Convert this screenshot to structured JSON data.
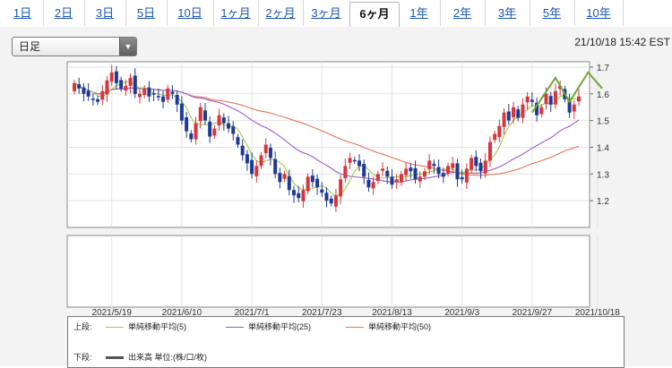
{
  "tabs": [
    {
      "label": "1日",
      "active": false
    },
    {
      "label": "2日",
      "active": false
    },
    {
      "label": "3日",
      "active": false
    },
    {
      "label": "5日",
      "active": false
    },
    {
      "label": "10日",
      "active": false
    },
    {
      "label": "1ヶ月",
      "active": false
    },
    {
      "label": "2ヶ月",
      "active": false
    },
    {
      "label": "3ヶ月",
      "active": false
    },
    {
      "label": "6ヶ月",
      "active": true
    },
    {
      "label": "1年",
      "active": false
    },
    {
      "label": "2年",
      "active": false
    },
    {
      "label": "3年",
      "active": false
    },
    {
      "label": "5年",
      "active": false
    },
    {
      "label": "10年",
      "active": false
    }
  ],
  "period_select": {
    "value": "日足"
  },
  "timestamp": "21/10/18 15:42 EST",
  "legend": {
    "upper_label": "上段:",
    "lower_label": "下段:",
    "ma5": "単純移動平均(5)",
    "ma25": "単純移動平均(25)",
    "ma50": "単純移動平均(50)",
    "volume": "出来高 単位:(株/口/枚)"
  },
  "colors": {
    "up": "#d9353c",
    "down": "#1f3a93",
    "ma5": "#a3c940",
    "ma25": "#9b59d0",
    "ma50": "#e8735a",
    "annotation": "#6aa63a",
    "volume_legend": "#555555"
  },
  "chart_data": {
    "type": "candlestick",
    "y_ticks": [
      1.2,
      1.3,
      1.4,
      1.5,
      1.6,
      1.7
    ],
    "ylim": [
      1.1,
      1.72
    ],
    "x_tick_labels": [
      "2021/5/19",
      "2021/6/10",
      "2021/7/1",
      "2021/7/23",
      "2021/8/13",
      "2021/9/3",
      "2021/9/27",
      "2021/10/18"
    ],
    "x_tick_index": [
      8,
      23,
      38,
      53,
      68,
      83,
      98,
      112
    ],
    "close": [
      1.64,
      1.62,
      1.6,
      1.59,
      1.58,
      1.57,
      1.61,
      1.65,
      1.68,
      1.64,
      1.62,
      1.63,
      1.66,
      1.6,
      1.6,
      1.62,
      1.59,
      1.6,
      1.59,
      1.57,
      1.62,
      1.6,
      1.56,
      1.5,
      1.46,
      1.43,
      1.49,
      1.55,
      1.5,
      1.44,
      1.47,
      1.52,
      1.49,
      1.47,
      1.45,
      1.41,
      1.37,
      1.34,
      1.3,
      1.33,
      1.37,
      1.41,
      1.36,
      1.3,
      1.27,
      1.3,
      1.24,
      1.22,
      1.21,
      1.24,
      1.29,
      1.27,
      1.25,
      1.23,
      1.2,
      1.19,
      1.22,
      1.28,
      1.33,
      1.36,
      1.35,
      1.33,
      1.29,
      1.25,
      1.27,
      1.3,
      1.32,
      1.29,
      1.26,
      1.28,
      1.3,
      1.32,
      1.31,
      1.28,
      1.29,
      1.31,
      1.35,
      1.33,
      1.3,
      1.29,
      1.33,
      1.34,
      1.28,
      1.28,
      1.32,
      1.36,
      1.33,
      1.31,
      1.35,
      1.42,
      1.45,
      1.48,
      1.53,
      1.5,
      1.55,
      1.51,
      1.56,
      1.59,
      1.57,
      1.52,
      1.55,
      1.6,
      1.56,
      1.61,
      1.63,
      1.58,
      1.53,
      1.56,
      1.59
    ],
    "sma5_start": 0,
    "sma25_start": 0,
    "sma50_start": 0,
    "annotation_points": [
      [
        98,
        1.53
      ],
      [
        103,
        1.66
      ],
      [
        106,
        1.57
      ],
      [
        110,
        1.68
      ],
      [
        113,
        1.62
      ]
    ]
  }
}
